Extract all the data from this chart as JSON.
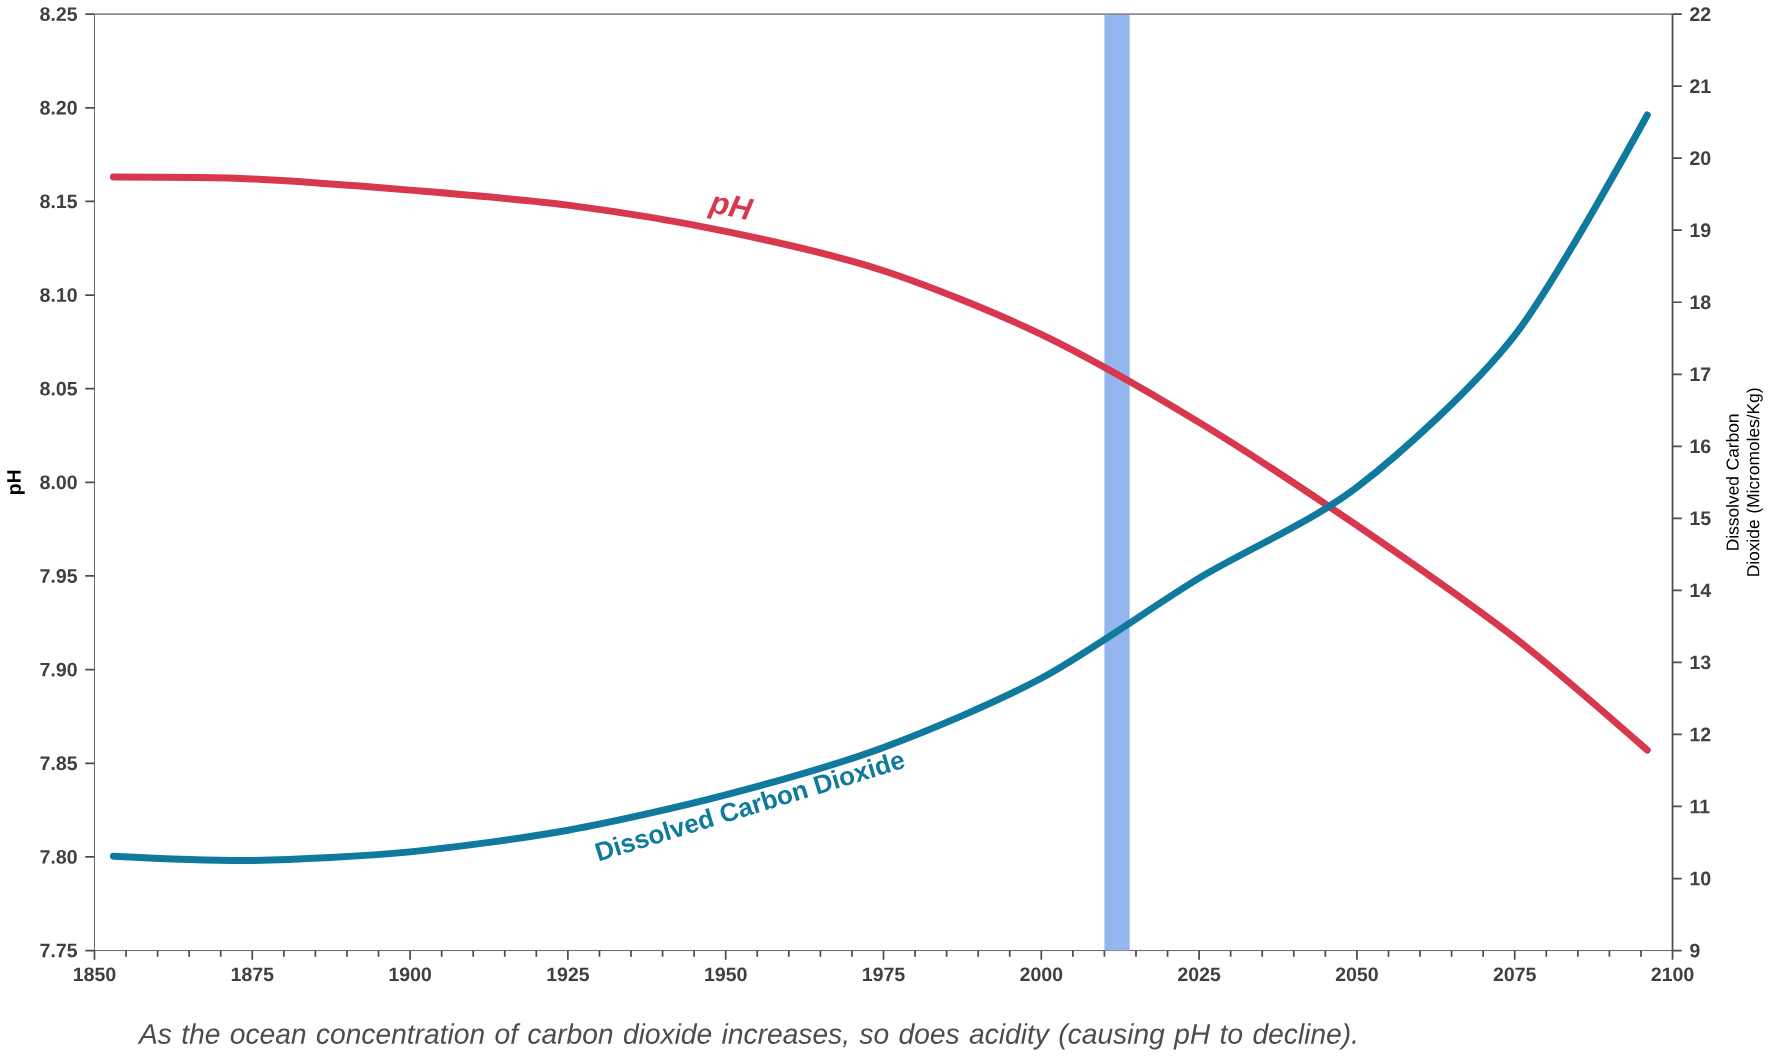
{
  "chart_data": {
    "type": "line",
    "xlabel": null,
    "ylabel": "pH",
    "y2label": "Dissolved Carbon Dioxide (Micromoles/Kg)",
    "xlim": [
      1850,
      2100
    ],
    "xticks": [
      1850,
      1875,
      1900,
      1925,
      1950,
      1975,
      2000,
      2025,
      2050,
      2075,
      2100
    ],
    "ylim": [
      7.75,
      8.25
    ],
    "yticks": [
      {
        "value": 7.75,
        "label": "7.75"
      },
      {
        "value": 7.8,
        "label": "7.80"
      },
      {
        "value": 7.85,
        "label": "7.85"
      },
      {
        "value": 7.9,
        "label": "7.90"
      },
      {
        "value": 7.95,
        "label": "7.95"
      },
      {
        "value": 8.0,
        "label": "8.00"
      },
      {
        "value": 8.05,
        "label": "8.05"
      },
      {
        "value": 8.1,
        "label": "8.10"
      },
      {
        "value": 8.15,
        "label": "8.15"
      },
      {
        "value": 8.2,
        "label": "8.20"
      },
      {
        "value": 8.25,
        "label": "8.25"
      }
    ],
    "y2lim": [
      9,
      22
    ],
    "y2ticks": [
      9,
      10,
      11,
      12,
      13,
      14,
      15,
      16,
      17,
      18,
      19,
      20,
      21,
      22
    ],
    "series": [
      {
        "name": "pH",
        "color": "#d8384e",
        "axis": "y",
        "x": [
          1853,
          1875,
          1900,
          1925,
          1950,
          1975,
          2000,
          2025,
          2050,
          2075,
          2096
        ],
        "values": [
          8.163,
          8.162,
          8.156,
          8.148,
          8.134,
          8.113,
          8.079,
          8.032,
          7.977,
          7.917,
          7.857
        ]
      },
      {
        "name": "Dissolved Carbon Dioxide",
        "color": "#0f7a9e",
        "axis": "y2",
        "x": [
          1853,
          1875,
          1900,
          1925,
          1950,
          1975,
          2000,
          2025,
          2050,
          2075,
          2096
        ],
        "values": [
          10.31,
          10.25,
          10.37,
          10.67,
          11.16,
          11.82,
          12.78,
          14.17,
          15.43,
          17.54,
          20.6
        ]
      }
    ],
    "bands": [
      {
        "axis": "x",
        "from": 2010,
        "to": 2014,
        "color": "#94b6ee"
      }
    ],
    "grid": false,
    "marker": "none",
    "line_style": "solid",
    "annotations": [
      "As the ocean concentration of carbon dioxide increases, so does acidity (causing pH to decline)."
    ]
  }
}
